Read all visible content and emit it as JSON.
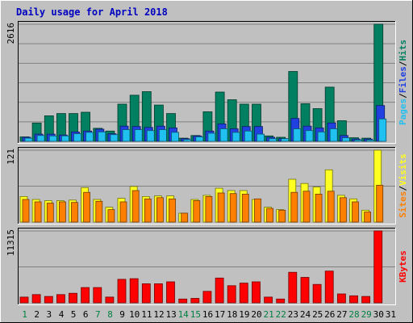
{
  "title": "Daily usage for April 2018",
  "colors": {
    "background": "#C0C0C0",
    "title": "#0000C0",
    "hits": "#008060",
    "files": "#2040E0",
    "pages": "#20C0F0",
    "visits": "#FFFF20",
    "sites": "#FF8000",
    "kbytes": "#FF0000",
    "weekend": "#008040",
    "weekday": "#000000",
    "grid": "#808080"
  },
  "chart_data": [
    {
      "type": "bar",
      "panel": "hits-files-pages",
      "ymax_label": "2616",
      "ylim": [
        0,
        2616
      ],
      "legend": [
        "Pages",
        "Files",
        "Hits"
      ],
      "legend_separator": "/",
      "categories": [
        "1",
        "2",
        "3",
        "4",
        "5",
        "6",
        "7",
        "8",
        "9",
        "10",
        "11",
        "12",
        "13",
        "14",
        "15",
        "16",
        "17",
        "18",
        "19",
        "20",
        "21",
        "22",
        "23",
        "24",
        "25",
        "26",
        "27",
        "28",
        "29",
        "30",
        "31"
      ],
      "series": [
        {
          "name": "Hits",
          "values": [
            100,
            410,
            570,
            620,
            620,
            650,
            290,
            230,
            830,
            1030,
            1110,
            810,
            620,
            70,
            130,
            660,
            1100,
            930,
            830,
            830,
            120,
            90,
            1560,
            840,
            730,
            1210,
            460,
            80,
            70,
            2616,
            0
          ]
        },
        {
          "name": "Files",
          "values": [
            90,
            160,
            160,
            140,
            210,
            230,
            270,
            170,
            340,
            330,
            310,
            340,
            300,
            60,
            120,
            230,
            390,
            280,
            330,
            330,
            90,
            60,
            510,
            340,
            300,
            410,
            130,
            50,
            50,
            800,
            0
          ]
        },
        {
          "name": "Pages",
          "values": [
            70,
            130,
            120,
            120,
            170,
            200,
            210,
            150,
            260,
            260,
            240,
            260,
            200,
            40,
            100,
            180,
            280,
            200,
            230,
            160,
            60,
            60,
            280,
            240,
            210,
            280,
            80,
            30,
            30,
            500,
            0
          ]
        }
      ]
    },
    {
      "type": "bar",
      "panel": "visits-sites",
      "ymax_label": "121",
      "ylim": [
        0,
        121
      ],
      "legend": [
        "Sites",
        "Visits"
      ],
      "legend_separator": "/",
      "categories": [
        "1",
        "2",
        "3",
        "4",
        "5",
        "6",
        "7",
        "8",
        "9",
        "10",
        "11",
        "12",
        "13",
        "14",
        "15",
        "16",
        "17",
        "18",
        "19",
        "20",
        "21",
        "22",
        "23",
        "24",
        "25",
        "26",
        "27",
        "28",
        "29",
        "30",
        "31"
      ],
      "series": [
        {
          "name": "Visits",
          "values": [
            43,
            38,
            36,
            36,
            37,
            58,
            38,
            25,
            40,
            60,
            43,
            44,
            44,
            15,
            38,
            45,
            57,
            53,
            53,
            38,
            25,
            21,
            72,
            65,
            59,
            88,
            45,
            39,
            20,
            121,
            0
          ]
        },
        {
          "name": "Sites",
          "values": [
            38,
            34,
            32,
            34,
            33,
            50,
            35,
            21,
            34,
            53,
            39,
            41,
            39,
            15,
            36,
            43,
            49,
            48,
            47,
            39,
            23,
            20,
            50,
            52,
            47,
            52,
            41,
            34,
            17,
            62,
            0
          ]
        }
      ]
    },
    {
      "type": "bar",
      "panel": "kbytes",
      "ymax_label": "11315",
      "ylim": [
        0,
        11315
      ],
      "legend": [
        "KBytes"
      ],
      "categories": [
        "1",
        "2",
        "3",
        "4",
        "5",
        "6",
        "7",
        "8",
        "9",
        "10",
        "11",
        "12",
        "13",
        "14",
        "15",
        "16",
        "17",
        "18",
        "19",
        "20",
        "21",
        "22",
        "23",
        "24",
        "25",
        "26",
        "27",
        "28",
        "29",
        "30",
        "31"
      ],
      "series": [
        {
          "name": "KBytes",
          "values": [
            900,
            1300,
            1000,
            1300,
            1500,
            2400,
            2400,
            900,
            3700,
            3800,
            3000,
            3000,
            3300,
            600,
            700,
            1800,
            3900,
            2700,
            3100,
            3300,
            900,
            600,
            4800,
            4000,
            2900,
            5000,
            1400,
            1100,
            1000,
            11315,
            0
          ]
        }
      ]
    }
  ],
  "day_labels": [
    "1",
    "2",
    "3",
    "4",
    "5",
    "6",
    "7",
    "8",
    "9",
    "10",
    "11",
    "12",
    "13",
    "14",
    "15",
    "16",
    "17",
    "18",
    "19",
    "20",
    "21",
    "22",
    "23",
    "24",
    "25",
    "26",
    "27",
    "28",
    "29",
    "30",
    "31"
  ],
  "weekend_days": [
    1,
    7,
    8,
    14,
    15,
    21,
    22,
    28,
    29
  ]
}
